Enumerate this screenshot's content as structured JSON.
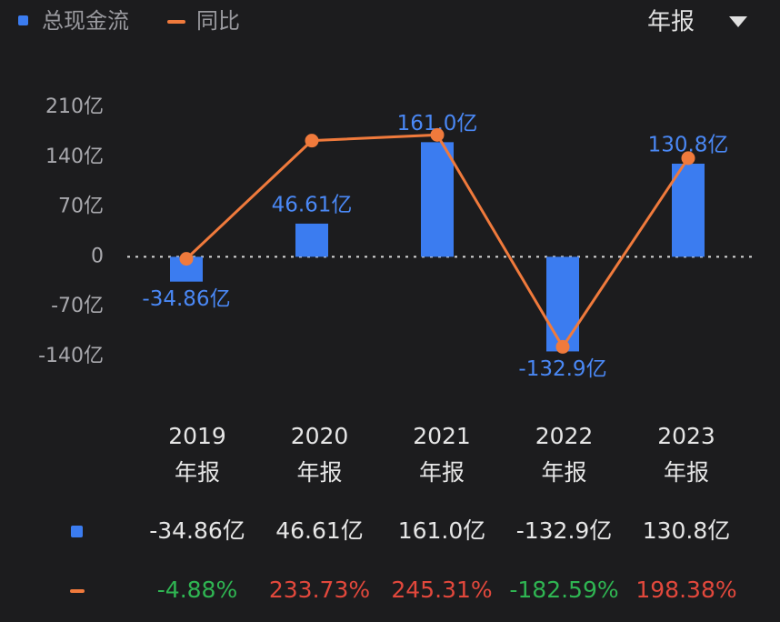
{
  "chart_data": {
    "type": "bar-line",
    "period": "年报",
    "categories": [
      "2019",
      "2020",
      "2021",
      "2022",
      "2023"
    ],
    "x_sublabels": [
      "年报",
      "年报",
      "年报",
      "年报",
      "年报"
    ],
    "series": [
      {
        "name": "总现金流",
        "type": "bar",
        "color": "#3b7cf0",
        "values": [
          -34.86,
          46.61,
          161.0,
          -132.9,
          130.8
        ],
        "value_labels": [
          "-34.86亿",
          "46.61亿",
          "161.0亿",
          "-132.9亿",
          "130.8亿"
        ]
      },
      {
        "name": "同比",
        "type": "line",
        "axis": "y2",
        "color": "#f07a3c",
        "values": [
          -4.88,
          233.73,
          245.31,
          -182.59,
          198.38
        ],
        "value_labels": [
          "-4.88%",
          "233.73%",
          "245.31%",
          "-182.59%",
          "198.38%"
        ]
      }
    ],
    "ylim": [
      -140,
      210
    ],
    "yticks": [
      {
        "value": 210,
        "label": "210亿"
      },
      {
        "value": 140,
        "label": "140亿"
      },
      {
        "value": 70,
        "label": "70亿"
      },
      0,
      {
        "value": -70,
        "label": "-70亿"
      },
      {
        "value": -140,
        "label": "-140亿"
      }
    ],
    "y2lim": [
      -202,
      301
    ],
    "zero_line": true,
    "positive_color": "#e2483c",
    "negative_color": "#2fb552"
  }
}
